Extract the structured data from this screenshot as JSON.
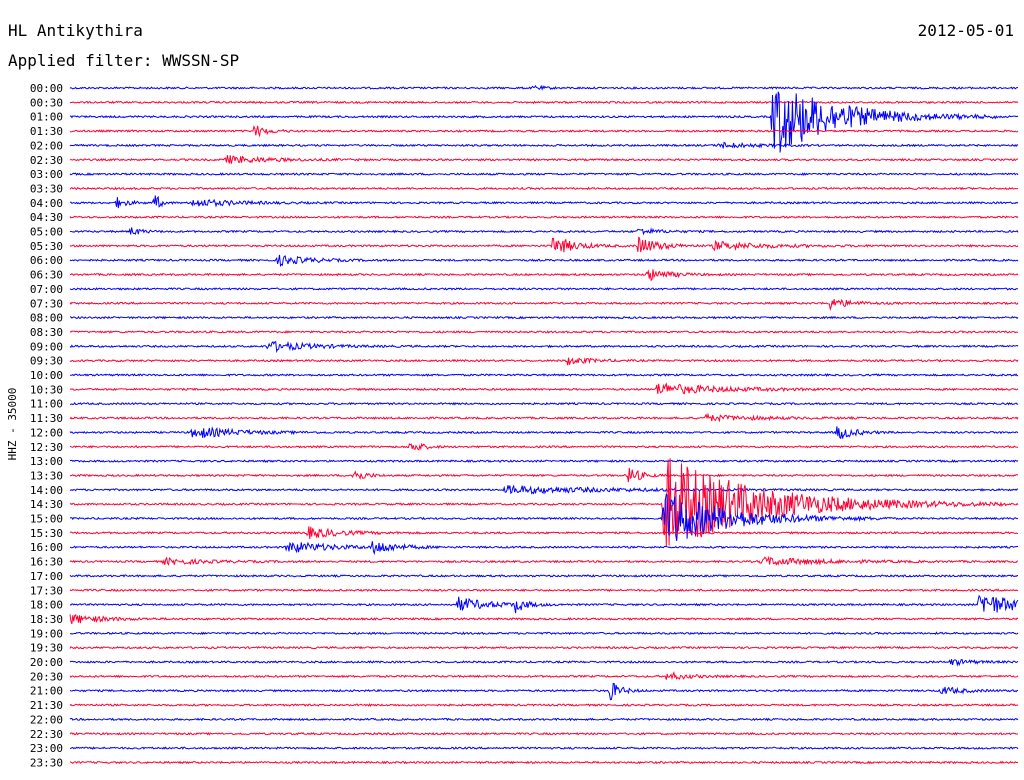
{
  "header": {
    "station": "HL Antikythira",
    "date": "2012-05-01",
    "filter": "Applied filter: WWSSN-SP"
  },
  "chart_data": {
    "type": "line",
    "ylabel": "HHZ - 35000",
    "colors": {
      "blue": "#0000ff",
      "red": "#ff0033"
    },
    "rows": [
      "00:00",
      "00:30",
      "01:00",
      "01:30",
      "02:00",
      "02:30",
      "03:00",
      "03:30",
      "04:00",
      "04:30",
      "05:00",
      "05:30",
      "06:00",
      "06:30",
      "07:00",
      "07:30",
      "08:00",
      "08:30",
      "09:00",
      "09:30",
      "10:00",
      "10:30",
      "11:00",
      "11:30",
      "12:00",
      "12:30",
      "13:00",
      "13:30",
      "14:00",
      "14:30",
      "15:00",
      "15:30",
      "16:00",
      "16:30",
      "17:00",
      "17:30",
      "18:00",
      "18:30",
      "19:00",
      "19:30",
      "20:00",
      "20:30",
      "21:00",
      "21:30",
      "22:00",
      "22:30",
      "23:00",
      "23:30"
    ],
    "events": [
      {
        "row": 0,
        "t": 0.49,
        "amp": 2,
        "dur": 0.01
      },
      {
        "row": 2,
        "t": 0.742,
        "amp": 40,
        "dur": 0.06
      },
      {
        "row": 3,
        "t": 0.195,
        "amp": 6,
        "dur": 0.012
      },
      {
        "row": 4,
        "t": 0.685,
        "amp": 3,
        "dur": 0.03
      },
      {
        "row": 5,
        "t": 0.165,
        "amp": 4,
        "dur": 0.04
      },
      {
        "row": 8,
        "t": 0.05,
        "amp": 5,
        "dur": 0.01
      },
      {
        "row": 8,
        "t": 0.09,
        "amp": 9,
        "dur": 0.005
      },
      {
        "row": 8,
        "t": 0.13,
        "amp": 4,
        "dur": 0.04
      },
      {
        "row": 10,
        "t": 0.065,
        "amp": 4,
        "dur": 0.01
      },
      {
        "row": 10,
        "t": 0.6,
        "amp": 3,
        "dur": 0.02
      },
      {
        "row": 11,
        "t": 0.51,
        "amp": 10,
        "dur": 0.02
      },
      {
        "row": 11,
        "t": 0.6,
        "amp": 9,
        "dur": 0.02
      },
      {
        "row": 11,
        "t": 0.68,
        "amp": 4,
        "dur": 0.05
      },
      {
        "row": 12,
        "t": 0.22,
        "amp": 5,
        "dur": 0.03
      },
      {
        "row": 13,
        "t": 0.61,
        "amp": 6,
        "dur": 0.02
      },
      {
        "row": 15,
        "t": 0.8,
        "amp": 6,
        "dur": 0.02
      },
      {
        "row": 18,
        "t": 0.21,
        "amp": 5,
        "dur": 0.04
      },
      {
        "row": 19,
        "t": 0.525,
        "amp": 4,
        "dur": 0.02
      },
      {
        "row": 21,
        "t": 0.62,
        "amp": 6,
        "dur": 0.06
      },
      {
        "row": 23,
        "t": 0.67,
        "amp": 3,
        "dur": 0.05
      },
      {
        "row": 24,
        "t": 0.13,
        "amp": 6,
        "dur": 0.04
      },
      {
        "row": 24,
        "t": 0.81,
        "amp": 8,
        "dur": 0.015
      },
      {
        "row": 25,
        "t": 0.36,
        "amp": 7,
        "dur": 0.01
      },
      {
        "row": 27,
        "t": 0.3,
        "amp": 7,
        "dur": 0.01
      },
      {
        "row": 27,
        "t": 0.59,
        "amp": 10,
        "dur": 0.01
      },
      {
        "row": 28,
        "t": 0.46,
        "amp": 4,
        "dur": 0.09
      },
      {
        "row": 29,
        "t": 0.627,
        "amp": 50,
        "dur": 0.09
      },
      {
        "row": 30,
        "t": 0.627,
        "amp": 30,
        "dur": 0.06
      },
      {
        "row": 31,
        "t": 0.25,
        "amp": 6,
        "dur": 0.03
      },
      {
        "row": 32,
        "t": 0.23,
        "amp": 6,
        "dur": 0.04
      },
      {
        "row": 32,
        "t": 0.32,
        "amp": 7,
        "dur": 0.02
      },
      {
        "row": 33,
        "t": 0.1,
        "amp": 3,
        "dur": 0.04
      },
      {
        "row": 33,
        "t": 0.73,
        "amp": 4,
        "dur": 0.06
      },
      {
        "row": 36,
        "t": 0.41,
        "amp": 7,
        "dur": 0.03
      },
      {
        "row": 36,
        "t": 0.47,
        "amp": 7,
        "dur": 0.01
      },
      {
        "row": 36,
        "t": 0.96,
        "amp": 12,
        "dur": 0.04
      },
      {
        "row": 37,
        "t": 0.0,
        "amp": 5,
        "dur": 0.03
      },
      {
        "row": 40,
        "t": 0.93,
        "amp": 3,
        "dur": 0.02
      },
      {
        "row": 41,
        "t": 0.63,
        "amp": 4,
        "dur": 0.02
      },
      {
        "row": 42,
        "t": 0.57,
        "amp": 10,
        "dur": 0.01
      },
      {
        "row": 42,
        "t": 0.92,
        "amp": 4,
        "dur": 0.02
      }
    ]
  }
}
